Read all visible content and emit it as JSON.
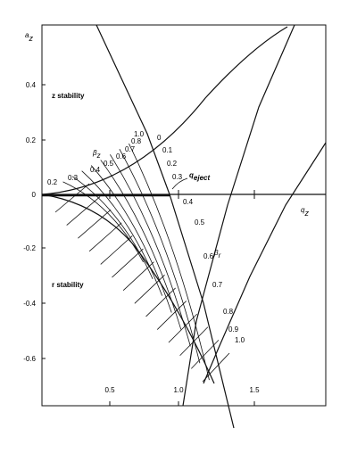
{
  "axes": {
    "y_label": {
      "symbol": "a",
      "subscript": "z"
    },
    "x_label": {
      "symbol": "q",
      "subscript": "z"
    },
    "y_ticks": [
      "0.4",
      "0.2",
      "0",
      "-0.2",
      "-0.4",
      "-0.6"
    ],
    "x_ticks": [
      "0.5",
      "1.0",
      "1.5"
    ]
  },
  "regions": {
    "z": "z stability",
    "r": "r stability"
  },
  "beta_z": {
    "symbol": "β",
    "subscript": "z",
    "left_labels": [
      "1.0",
      "0.8",
      "0.7",
      "0.6",
      "0.5",
      "0.4",
      "0.3",
      "0.2"
    ],
    "right_labels": [
      "0",
      "0.1",
      "0.2",
      "0.3"
    ]
  },
  "beta_r": {
    "symbol": "β",
    "subscript": "r",
    "labels": [
      "0.4",
      "0.5",
      "0.6",
      "0.7",
      "0.8",
      "0.9",
      "1.0"
    ]
  },
  "q_eject": {
    "symbol": "q",
    "subscript": "eject"
  }
}
